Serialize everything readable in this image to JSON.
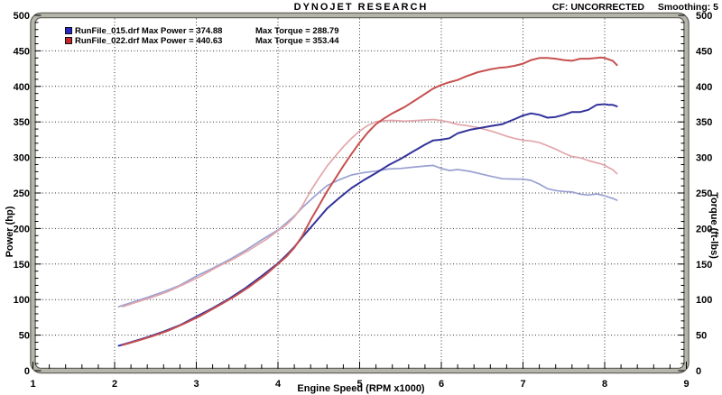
{
  "header": {
    "title": "DYNOJET RESEARCH",
    "correction": "CF: UNCORRECTED",
    "smoothing": "Smoothing: 5"
  },
  "legend": {
    "rows": [
      {
        "marker_color": "#2626c8",
        "main_label": "RunFile_015.drf Max Power = 374.88",
        "torque_label": "Max Torque = 288.79"
      },
      {
        "marker_color": "#c82626",
        "main_label": "RunFile_022.drf Max Power = 440.63",
        "torque_label": "Max Torque = 353.44"
      }
    ]
  },
  "chart_data": {
    "type": "line",
    "title": "DYNOJET RESEARCH",
    "xlabel": "Engine Speed (RPM x1000)",
    "ylabel_left": "Power (hp)",
    "ylabel_right": "Torque (ft-lbs)",
    "xlim": [
      1,
      9
    ],
    "ylim": [
      0,
      500
    ],
    "x_ticks": [
      1,
      2,
      3,
      4,
      5,
      6,
      7,
      8,
      9
    ],
    "y_ticks": [
      0,
      50,
      100,
      150,
      200,
      250,
      300,
      350,
      400,
      450,
      500
    ],
    "x_minor_step": 0.2,
    "y_minor_step": 10,
    "grid": "dotted",
    "legend_position": "top-left-inside",
    "grid_color": "#333333",
    "frame_outer_color": "#63635a",
    "frame_inner_color": "#b5b5ac",
    "series": [
      {
        "name": "torque_015",
        "run": "RunFile_015.drf",
        "quantity": "Torque (ft-lbs)",
        "max_value": 288.79,
        "color": "#9aa0d2",
        "width": 1.7,
        "points": [
          [
            2.05,
            90
          ],
          [
            2.2,
            95.5
          ],
          [
            2.4,
            103
          ],
          [
            2.6,
            111
          ],
          [
            2.8,
            120
          ],
          [
            3.0,
            133
          ],
          [
            3.2,
            144
          ],
          [
            3.4,
            156
          ],
          [
            3.6,
            169
          ],
          [
            3.8,
            184
          ],
          [
            4.0,
            198
          ],
          [
            4.1,
            207.5
          ],
          [
            4.2,
            217.6
          ],
          [
            4.3,
            229.6
          ],
          [
            4.45,
            245.5
          ],
          [
            4.6,
            260.3
          ],
          [
            4.75,
            268.7
          ],
          [
            4.9,
            275.4
          ],
          [
            5.05,
            278.7
          ],
          [
            5.2,
            280.8
          ],
          [
            5.35,
            283.7
          ],
          [
            5.5,
            284.5
          ],
          [
            5.65,
            286.3
          ],
          [
            5.8,
            288
          ],
          [
            5.9,
            288.8
          ],
          [
            6.0,
            284.5
          ],
          [
            6.1,
            281.6
          ],
          [
            6.2,
            283
          ],
          [
            6.35,
            280.4
          ],
          [
            6.5,
            276.4
          ],
          [
            6.6,
            273.7
          ],
          [
            6.75,
            270
          ],
          [
            6.9,
            269.5
          ],
          [
            7.0,
            269.4
          ],
          [
            7.1,
            267.8
          ],
          [
            7.2,
            262.6
          ],
          [
            7.3,
            256.1
          ],
          [
            7.4,
            253.4
          ],
          [
            7.5,
            252.1
          ],
          [
            7.6,
            251.5
          ],
          [
            7.7,
            248.3
          ],
          [
            7.8,
            247.1
          ],
          [
            7.9,
            248.6
          ],
          [
            8.0,
            246.2
          ],
          [
            8.05,
            244
          ],
          [
            8.1,
            242.4
          ],
          [
            8.15,
            239.8
          ]
        ]
      },
      {
        "name": "torque_022",
        "run": "RunFile_022.drf",
        "quantity": "Torque (ft-lbs)",
        "max_value": 353.44,
        "color": "#e2a6aa",
        "width": 1.7,
        "points": [
          [
            2.1,
            90
          ],
          [
            2.25,
            95.7
          ],
          [
            2.45,
            102.9
          ],
          [
            2.65,
            111
          ],
          [
            2.85,
            121.6
          ],
          [
            3.05,
            132.6
          ],
          [
            3.25,
            145.4
          ],
          [
            3.45,
            156.8
          ],
          [
            3.65,
            169.8
          ],
          [
            3.85,
            184.2
          ],
          [
            4.0,
            197
          ],
          [
            4.1,
            205
          ],
          [
            4.2,
            216.3
          ],
          [
            4.3,
            232.1
          ],
          [
            4.4,
            253.1
          ],
          [
            4.5,
            270.8
          ],
          [
            4.6,
            287.7
          ],
          [
            4.7,
            301.7
          ],
          [
            4.8,
            315.1
          ],
          [
            4.9,
            326.9
          ],
          [
            5.0,
            337.2
          ],
          [
            5.1,
            345
          ],
          [
            5.2,
            350.4
          ],
          [
            5.3,
            351.8
          ],
          [
            5.4,
            352.1
          ],
          [
            5.55,
            351.1
          ],
          [
            5.7,
            352
          ],
          [
            5.9,
            353.4
          ],
          [
            6.0,
            351.9
          ],
          [
            6.1,
            349.6
          ],
          [
            6.2,
            346.4
          ],
          [
            6.3,
            345.1
          ],
          [
            6.45,
            342
          ],
          [
            6.6,
            337.4
          ],
          [
            6.7,
            333.9
          ],
          [
            6.8,
            329.8
          ],
          [
            6.9,
            326.6
          ],
          [
            7.0,
            324.3
          ],
          [
            7.1,
            323.2
          ],
          [
            7.2,
            321
          ],
          [
            7.3,
            316.5
          ],
          [
            7.4,
            311.7
          ],
          [
            7.5,
            306
          ],
          [
            7.6,
            301.3
          ],
          [
            7.7,
            299.5
          ],
          [
            7.8,
            295.7
          ],
          [
            7.9,
            292.5
          ],
          [
            7.95,
            291.1
          ],
          [
            8.0,
            288.9
          ],
          [
            8.05,
            285.6
          ],
          [
            8.1,
            282.6
          ],
          [
            8.15,
            277.1
          ]
        ]
      },
      {
        "name": "power_015",
        "run": "RunFile_015.drf",
        "quantity": "Power (hp)",
        "max_value": 374.88,
        "color": "#32329b",
        "width": 2,
        "points": [
          [
            2.05,
            35
          ],
          [
            2.2,
            40
          ],
          [
            2.4,
            47
          ],
          [
            2.6,
            55
          ],
          [
            2.8,
            64
          ],
          [
            3.0,
            76
          ],
          [
            3.2,
            88
          ],
          [
            3.4,
            101
          ],
          [
            3.6,
            116
          ],
          [
            3.8,
            133
          ],
          [
            4.0,
            151
          ],
          [
            4.1,
            162
          ],
          [
            4.2,
            174
          ],
          [
            4.3,
            188
          ],
          [
            4.45,
            208
          ],
          [
            4.6,
            228
          ],
          [
            4.75,
            243
          ],
          [
            4.9,
            257
          ],
          [
            5.05,
            268
          ],
          [
            5.2,
            278
          ],
          [
            5.35,
            289
          ],
          [
            5.5,
            298
          ],
          [
            5.65,
            308
          ],
          [
            5.8,
            318
          ],
          [
            5.9,
            324
          ],
          [
            6.0,
            325
          ],
          [
            6.1,
            327
          ],
          [
            6.2,
            334
          ],
          [
            6.35,
            339
          ],
          [
            6.5,
            342
          ],
          [
            6.6,
            344
          ],
          [
            6.75,
            347
          ],
          [
            6.9,
            354
          ],
          [
            7.0,
            359
          ],
          [
            7.1,
            362
          ],
          [
            7.2,
            360
          ],
          [
            7.3,
            356
          ],
          [
            7.4,
            357
          ],
          [
            7.5,
            360
          ],
          [
            7.6,
            364
          ],
          [
            7.7,
            364
          ],
          [
            7.8,
            367
          ],
          [
            7.9,
            374
          ],
          [
            8.0,
            375
          ],
          [
            8.05,
            374
          ],
          [
            8.1,
            374
          ],
          [
            8.15,
            372
          ]
        ]
      },
      {
        "name": "power_022",
        "run": "RunFile_022.drf",
        "quantity": "Power (hp)",
        "max_value": 440.63,
        "color": "#c65050",
        "width": 2,
        "points": [
          [
            2.1,
            36
          ],
          [
            2.25,
            41
          ],
          [
            2.45,
            48
          ],
          [
            2.65,
            56
          ],
          [
            2.85,
            66
          ],
          [
            3.05,
            77
          ],
          [
            3.25,
            90
          ],
          [
            3.45,
            103
          ],
          [
            3.65,
            118
          ],
          [
            3.85,
            135
          ],
          [
            4.0,
            150
          ],
          [
            4.1,
            160
          ],
          [
            4.2,
            173
          ],
          [
            4.3,
            190
          ],
          [
            4.4,
            212
          ],
          [
            4.5,
            232
          ],
          [
            4.6,
            252
          ],
          [
            4.7,
            270
          ],
          [
            4.8,
            288
          ],
          [
            4.9,
            305
          ],
          [
            5.0,
            321
          ],
          [
            5.1,
            335
          ],
          [
            5.2,
            347
          ],
          [
            5.3,
            355
          ],
          [
            5.4,
            362
          ],
          [
            5.55,
            371
          ],
          [
            5.7,
            382
          ],
          [
            5.9,
            397
          ],
          [
            6.0,
            402
          ],
          [
            6.1,
            406
          ],
          [
            6.2,
            409
          ],
          [
            6.3,
            414
          ],
          [
            6.45,
            420
          ],
          [
            6.6,
            424
          ],
          [
            6.7,
            426
          ],
          [
            6.8,
            427
          ],
          [
            6.9,
            429
          ],
          [
            7.0,
            432
          ],
          [
            7.1,
            437
          ],
          [
            7.2,
            440
          ],
          [
            7.3,
            440
          ],
          [
            7.4,
            439
          ],
          [
            7.5,
            437
          ],
          [
            7.6,
            436
          ],
          [
            7.7,
            439
          ],
          [
            7.8,
            439
          ],
          [
            7.9,
            440
          ],
          [
            7.95,
            440.6
          ],
          [
            8.0,
            440
          ],
          [
            8.05,
            438
          ],
          [
            8.1,
            436
          ],
          [
            8.15,
            430
          ]
        ]
      }
    ]
  }
}
